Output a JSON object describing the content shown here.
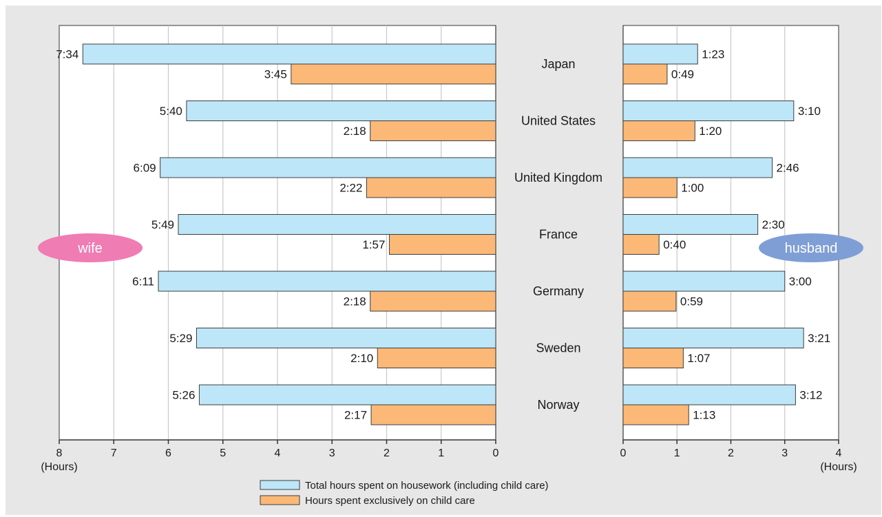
{
  "chart_data": {
    "type": "bar",
    "orientation": "horizontal",
    "categories": [
      "Japan",
      "United States",
      "United Kingdom",
      "France",
      "Germany",
      "Sweden",
      "Norway"
    ],
    "panels": {
      "wife": {
        "label": "wife",
        "label_color": "#f07cb4",
        "xlim": [
          0,
          8
        ],
        "ticks": [
          0,
          1,
          2,
          3,
          4,
          5,
          6,
          7,
          8
        ],
        "unit_label": "(Hours)",
        "series": [
          {
            "key": "total",
            "values": [
              7.567,
              5.667,
              6.15,
              5.817,
              6.183,
              5.483,
              5.433
            ],
            "labels": [
              "7:34",
              "5:40",
              "6:09",
              "5:49",
              "6:11",
              "5:29",
              "5:26"
            ]
          },
          {
            "key": "childcare",
            "values": [
              3.75,
              2.3,
              2.367,
              1.95,
              2.3,
              2.167,
              2.283
            ],
            "labels": [
              "3:45",
              "2:18",
              "2:22",
              "1:57",
              "2:18",
              "2:10",
              "2:17"
            ]
          }
        ]
      },
      "husband": {
        "label": "husband",
        "label_color": "#7f9ed6",
        "xlim": [
          0,
          4
        ],
        "ticks": [
          0,
          1,
          2,
          3,
          4
        ],
        "unit_label": "(Hours)",
        "series": [
          {
            "key": "total",
            "values": [
              1.383,
              3.167,
              2.767,
              2.5,
              3.0,
              3.35,
              3.2
            ],
            "labels": [
              "1:23",
              "3:10",
              "2:46",
              "2:30",
              "3:00",
              "3:21",
              "3:12"
            ]
          },
          {
            "key": "childcare",
            "values": [
              0.817,
              1.333,
              1.0,
              0.667,
              0.983,
              1.117,
              1.217
            ],
            "labels": [
              "0:49",
              "1:20",
              "1:00",
              "0:40",
              "0:59",
              "1:07",
              "1:13"
            ]
          }
        ]
      }
    },
    "legend": [
      {
        "key": "total",
        "name": "Total hours spent on housework (including child care)",
        "color": "#bde6f8"
      },
      {
        "key": "childcare",
        "name": "Hours spent exclusively on child care",
        "color": "#fbb877"
      }
    ],
    "grid": true,
    "legend_placement": "bottom-center"
  }
}
